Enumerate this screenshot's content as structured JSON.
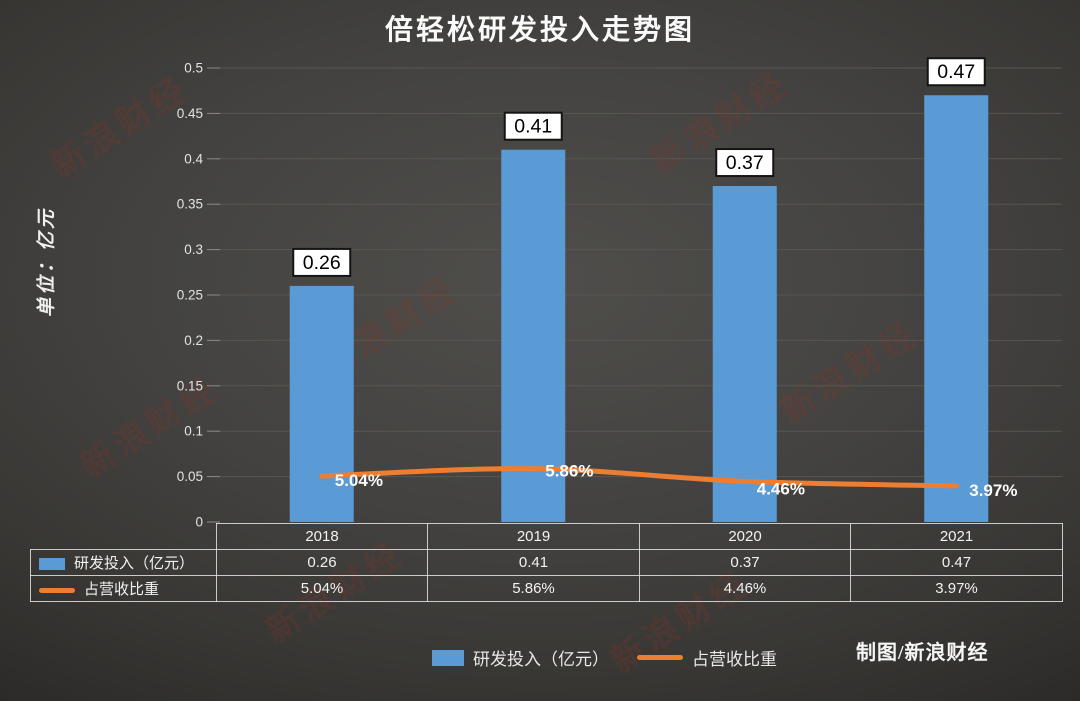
{
  "title": "倍轻松研发投入走势图",
  "credit": "制图/新浪财经",
  "watermark": {
    "text": "新浪财经"
  },
  "colors": {
    "bar": "#5B9BD5",
    "line": "#ED7D31",
    "grid": "#585651",
    "tick": "#8b8a85",
    "tick_text": "#e2e2e2",
    "label_box_bg": "#FFFFFF",
    "label_box_border": "#141414",
    "label_box_text": "#000000",
    "line_label_text": "#fcfcfc"
  },
  "chart_data": {
    "type": "combo-bar-line",
    "title": "倍轻松研发投入走势图",
    "ylabel": "单位：亿元",
    "categories": [
      "2018",
      "2019",
      "2020",
      "2021"
    ],
    "series": [
      {
        "name": "研发投入（亿元）",
        "type": "bar",
        "color": "#5B9BD5",
        "values": [
          0.26,
          0.41,
          0.37,
          0.47
        ],
        "labels": [
          "0.26",
          "0.41",
          "0.37",
          "0.47"
        ]
      },
      {
        "name": "占营收比重",
        "type": "line",
        "color": "#ED7D31",
        "values_percent": [
          5.04,
          5.86,
          4.46,
          3.97
        ],
        "labels": [
          "5.04%",
          "5.86%",
          "4.46%",
          "3.97%"
        ]
      }
    ],
    "y_axis": {
      "min": 0,
      "max": 0.5,
      "tick_step": 0.05,
      "tick_labels": [
        "0",
        "0.05",
        "0.1",
        "0.15",
        "0.2",
        "0.25",
        "0.3",
        "0.35",
        "0.4",
        "0.45",
        "0.5"
      ]
    },
    "grid": true,
    "legend_position": "bottom"
  },
  "table": {
    "header_row": [
      "2018",
      "2019",
      "2020",
      "2021"
    ],
    "rows": [
      {
        "swatch": "bar",
        "label": "研发投入（亿元）",
        "values": [
          "0.26",
          "0.41",
          "0.37",
          "0.47"
        ]
      },
      {
        "swatch": "line",
        "label": "占营收比重",
        "values": [
          "5.04%",
          "5.86%",
          "4.46%",
          "3.97%"
        ]
      }
    ]
  },
  "legend": {
    "items": [
      {
        "swatch": "bar",
        "label": "研发投入（亿元）"
      },
      {
        "swatch": "line",
        "label": "占营收比重"
      }
    ]
  }
}
